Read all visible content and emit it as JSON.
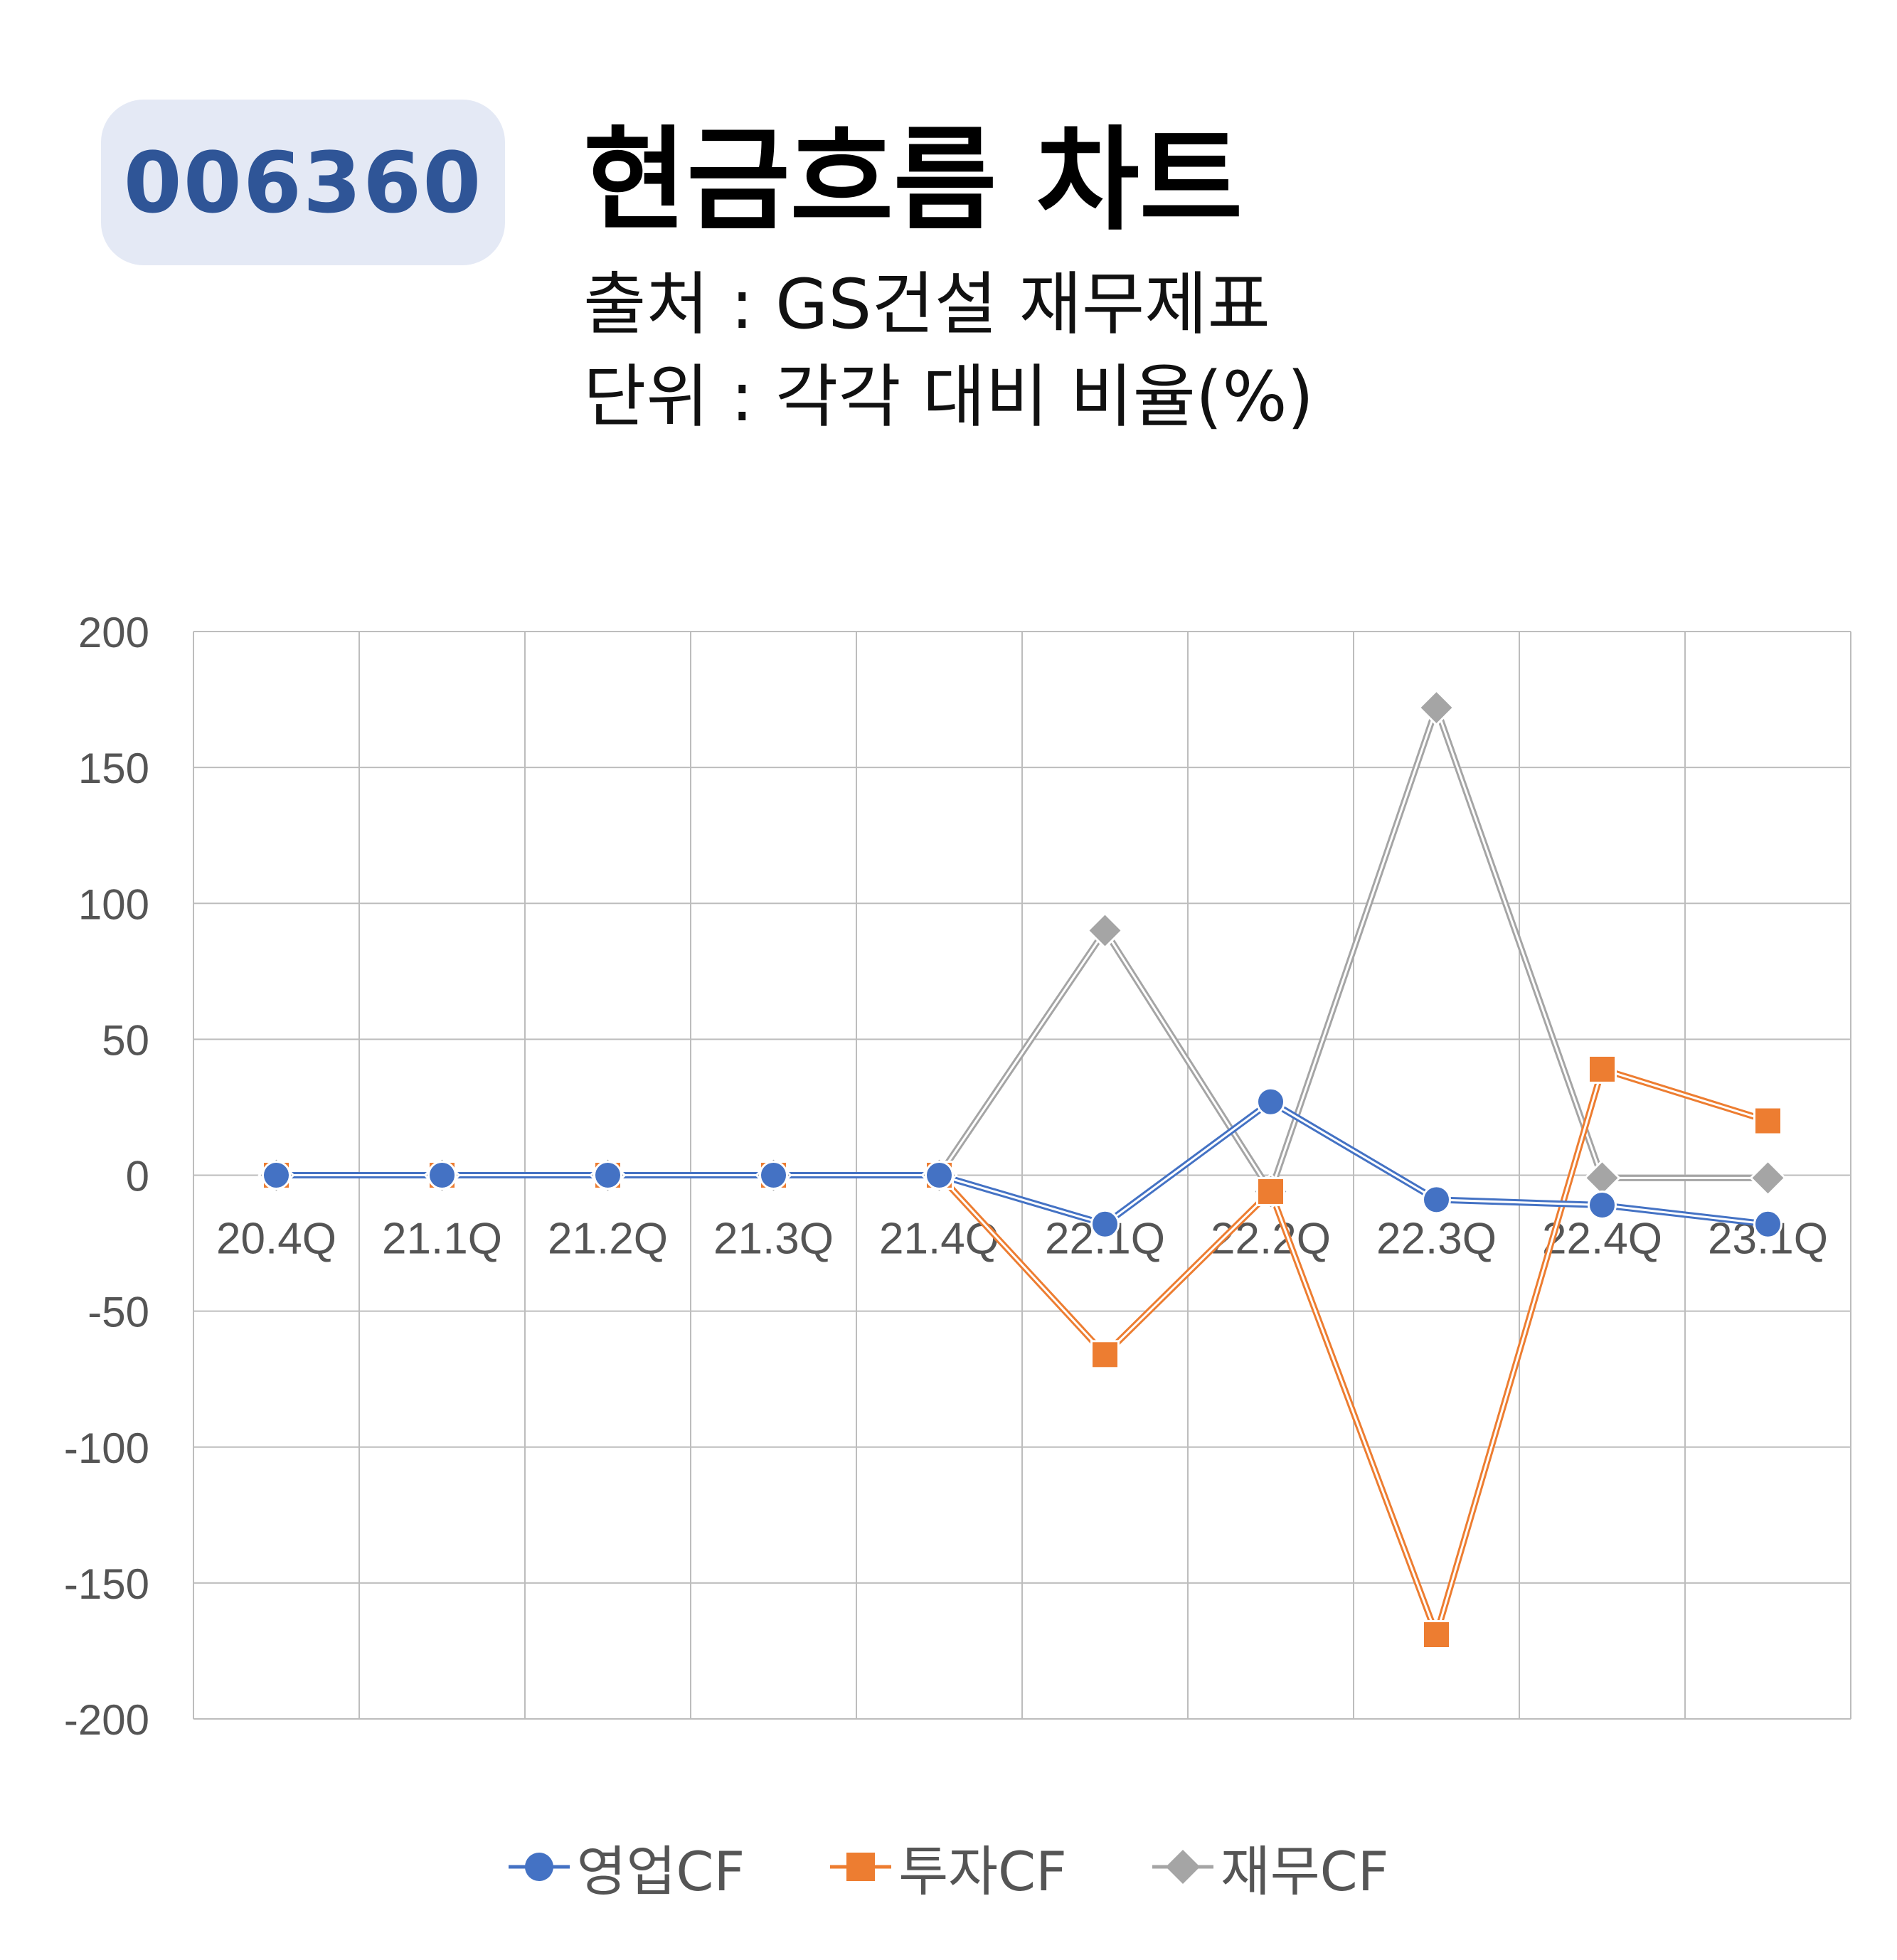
{
  "header": {
    "code": "006360",
    "title": "현금흐름 차트",
    "source_line": "출처 : GS건설 재무제표",
    "unit_line": "단위 : 각각 대비 비율(%)"
  },
  "colors": {
    "badge_bg": "#e4e9f5",
    "badge_text": "#2f5597",
    "operating": "#4472c4",
    "investing": "#ed7d31",
    "financing": "#a5a5a5"
  },
  "chart_data": {
    "type": "line",
    "categories": [
      "20.4Q",
      "21.1Q",
      "21.2Q",
      "21.3Q",
      "21.4Q",
      "22.1Q",
      "22.2Q",
      "22.3Q",
      "22.4Q",
      "23.1Q"
    ],
    "series": [
      {
        "name": "영업CF",
        "marker": "circle",
        "color": "#4472c4",
        "values": [
          0,
          0,
          0,
          0,
          0,
          -18,
          27,
          -9,
          -11,
          -18
        ]
      },
      {
        "name": "투자CF",
        "marker": "square",
        "color": "#ed7d31",
        "values": [
          0,
          0,
          0,
          0,
          0,
          -66,
          -6,
          -169,
          39,
          20
        ]
      },
      {
        "name": "재무CF",
        "marker": "diamond",
        "color": "#a5a5a5",
        "values": [
          0,
          0,
          0,
          0,
          0,
          90,
          -6,
          172,
          -1,
          -1
        ]
      }
    ],
    "ylim": [
      -200,
      200
    ],
    "yticks": [
      "200",
      "150",
      "100",
      "50",
      "0",
      "-50",
      "-100",
      "-150",
      "-200"
    ],
    "grid": true,
    "legend": "bottom"
  }
}
